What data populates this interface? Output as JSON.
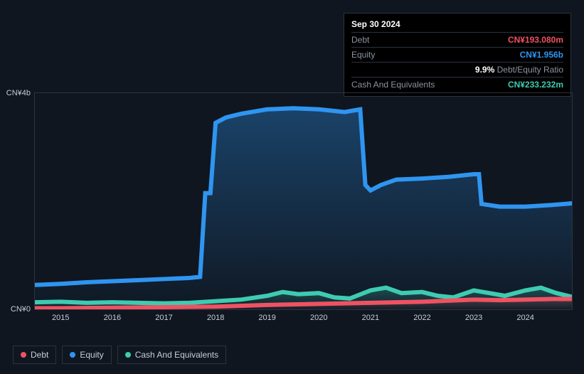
{
  "tooltip": {
    "title": "Sep 30 2024",
    "rows": [
      {
        "label": "Debt",
        "value": "CN¥193.080m",
        "color": "#ef5262"
      },
      {
        "label": "Equity",
        "value": "CN¥1.956b",
        "color": "#2f95f0"
      },
      {
        "label": "",
        "value_prefix": "9.9%",
        "value_suffix": " Debt/Equity Ratio",
        "prefix_color": "#ffffff",
        "suffix_color": "#8a94a1"
      },
      {
        "label": "Cash And Equivalents",
        "value": "CN¥233.232m",
        "color": "#3fcbb1"
      }
    ]
  },
  "chart": {
    "type": "area-line",
    "background_color": "#0f1620",
    "grid_color": "#2a3340",
    "ylim": [
      0,
      4
    ],
    "y_ticks": [
      {
        "v": 0,
        "label": "CN¥0"
      },
      {
        "v": 4,
        "label": "CN¥4b"
      }
    ],
    "x_years": [
      2015,
      2016,
      2017,
      2018,
      2019,
      2020,
      2021,
      2022,
      2023,
      2024
    ],
    "x_range": [
      2014.5,
      2024.9
    ],
    "series": {
      "equity": {
        "label": "Equity",
        "stroke": "#2f95f0",
        "fill_from": "rgba(47,149,240,0.35)",
        "fill_to": "rgba(47,149,240,0.02)",
        "line_width": 2,
        "points": [
          [
            2014.5,
            0.45
          ],
          [
            2015,
            0.47
          ],
          [
            2015.5,
            0.5
          ],
          [
            2016,
            0.52
          ],
          [
            2016.5,
            0.54
          ],
          [
            2017,
            0.56
          ],
          [
            2017.5,
            0.58
          ],
          [
            2017.7,
            0.6
          ],
          [
            2017.8,
            2.15
          ],
          [
            2017.9,
            2.15
          ],
          [
            2018.0,
            3.45
          ],
          [
            2018.2,
            3.55
          ],
          [
            2018.5,
            3.62
          ],
          [
            2019,
            3.7
          ],
          [
            2019.5,
            3.72
          ],
          [
            2020,
            3.7
          ],
          [
            2020.5,
            3.65
          ],
          [
            2020.8,
            3.7
          ],
          [
            2020.9,
            2.3
          ],
          [
            2021,
            2.2
          ],
          [
            2021.2,
            2.3
          ],
          [
            2021.5,
            2.4
          ],
          [
            2022,
            2.42
          ],
          [
            2022.5,
            2.45
          ],
          [
            2023,
            2.5
          ],
          [
            2023.1,
            2.5
          ],
          [
            2023.15,
            1.95
          ],
          [
            2023.5,
            1.9
          ],
          [
            2024,
            1.9
          ],
          [
            2024.5,
            1.93
          ],
          [
            2024.9,
            1.96
          ]
        ]
      },
      "cash": {
        "label": "Cash And Equivalents",
        "stroke": "#3fcbb1",
        "fill_from": "rgba(63,203,177,0.28)",
        "fill_to": "rgba(63,203,177,0.02)",
        "line_width": 2,
        "points": [
          [
            2014.5,
            0.13
          ],
          [
            2015,
            0.14
          ],
          [
            2015.5,
            0.12
          ],
          [
            2016,
            0.13
          ],
          [
            2016.5,
            0.12
          ],
          [
            2017,
            0.11
          ],
          [
            2017.5,
            0.12
          ],
          [
            2018,
            0.15
          ],
          [
            2018.5,
            0.18
          ],
          [
            2019,
            0.25
          ],
          [
            2019.3,
            0.32
          ],
          [
            2019.6,
            0.28
          ],
          [
            2020,
            0.3
          ],
          [
            2020.3,
            0.22
          ],
          [
            2020.6,
            0.2
          ],
          [
            2021,
            0.35
          ],
          [
            2021.3,
            0.4
          ],
          [
            2021.6,
            0.3
          ],
          [
            2022,
            0.32
          ],
          [
            2022.3,
            0.25
          ],
          [
            2022.6,
            0.22
          ],
          [
            2023,
            0.35
          ],
          [
            2023.3,
            0.3
          ],
          [
            2023.6,
            0.25
          ],
          [
            2024,
            0.35
          ],
          [
            2024.3,
            0.4
          ],
          [
            2024.6,
            0.3
          ],
          [
            2024.9,
            0.23
          ]
        ]
      },
      "debt": {
        "label": "Debt",
        "stroke": "#ef5262",
        "fill_from": "rgba(239,82,98,0.20)",
        "fill_to": "rgba(239,82,98,0.02)",
        "line_width": 2,
        "points": [
          [
            2014.5,
            0.02
          ],
          [
            2015,
            0.02
          ],
          [
            2016,
            0.03
          ],
          [
            2017,
            0.04
          ],
          [
            2018,
            0.05
          ],
          [
            2019,
            0.08
          ],
          [
            2020,
            0.1
          ],
          [
            2021,
            0.12
          ],
          [
            2022,
            0.14
          ],
          [
            2022.5,
            0.16
          ],
          [
            2023,
            0.18
          ],
          [
            2023.5,
            0.17
          ],
          [
            2024,
            0.18
          ],
          [
            2024.5,
            0.19
          ],
          [
            2024.9,
            0.19
          ]
        ]
      }
    },
    "legend_order": [
      "debt",
      "equity",
      "cash"
    ]
  }
}
